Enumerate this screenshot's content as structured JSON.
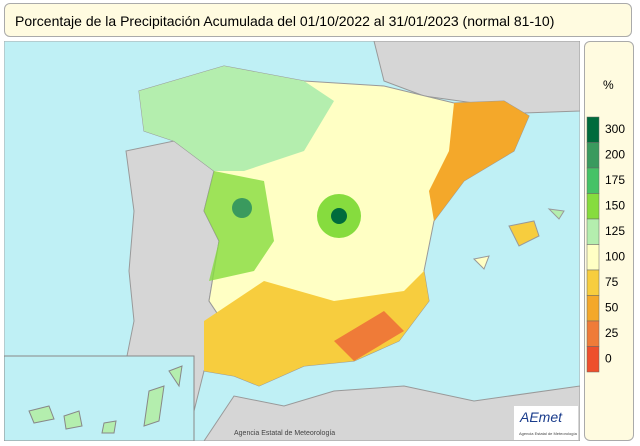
{
  "header": {
    "title": "Porcentaje de la Precipitación Acumulada del 01/10/2022 al 31/01/2023 (normal 81-10)"
  },
  "legend": {
    "unit": "%",
    "levels": [
      300,
      200,
      175,
      150,
      125,
      100,
      75,
      50,
      25,
      0
    ],
    "colors": [
      "#006b3c",
      "#3a9a5e",
      "#46c266",
      "#86dc3e",
      "#b4eeae",
      "#ffffc4",
      "#f7cd3e",
      "#f4a82a",
      "#ef7b38",
      "#ee4f2c"
    ]
  },
  "map": {
    "credit": "Agencia Estatal de Meteorología"
  },
  "logo": {
    "name": "AEmet",
    "subtitle": "Agencia Estatal de Meteorología"
  }
}
